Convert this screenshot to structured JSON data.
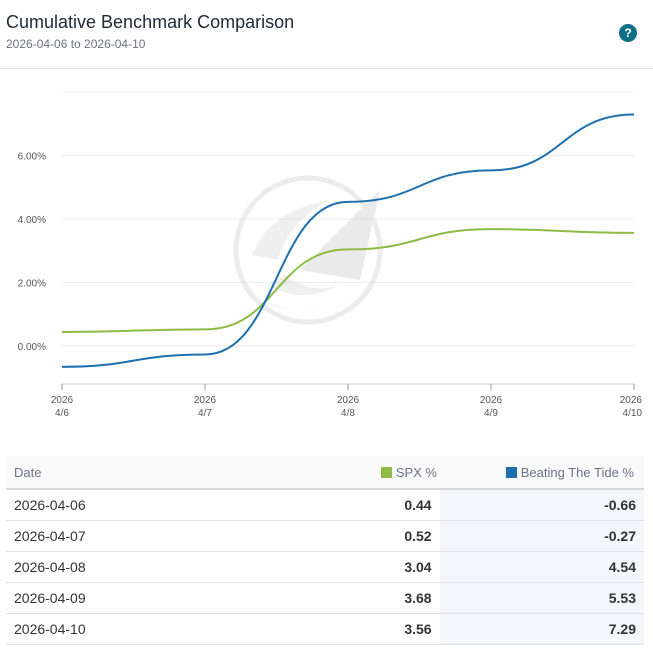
{
  "header": {
    "title": "Cumulative Benchmark Comparison",
    "subtitle": "2026-04-06 to 2026-04-10",
    "help_label": "?"
  },
  "colors": {
    "spx": "#8cbc45",
    "btt": "#1d70b0",
    "grid": "#ececec",
    "accent": "#0e6f86"
  },
  "icons": {
    "watermark": "sailboat-logo-watermark",
    "help": "question-icon"
  },
  "chart_data": {
    "type": "line",
    "title": "Cumulative Benchmark Comparison",
    "subtitle": "2026-04-06 to 2026-04-10",
    "x": [
      "2026-04-06",
      "2026-04-07",
      "2026-04-08",
      "2026-04-09",
      "2026-04-10"
    ],
    "x_tick_labels": [
      {
        "year": "2026",
        "day": "4/6"
      },
      {
        "year": "2026",
        "day": "4/7"
      },
      {
        "year": "2026",
        "day": "4/8"
      },
      {
        "year": "2026",
        "day": "4/9"
      },
      {
        "year": "2026",
        "day": "4/10"
      }
    ],
    "series": [
      {
        "name": "SPX %",
        "color": "#8cbc45",
        "values": [
          0.44,
          0.52,
          3.04,
          3.68,
          3.56
        ]
      },
      {
        "name": "Beating The Tide %",
        "color": "#1d70b0",
        "values": [
          -0.66,
          -0.27,
          4.54,
          5.53,
          7.29
        ]
      }
    ],
    "y_ticks": [
      "0.00%",
      "2.00%",
      "4.00%",
      "6.00%"
    ],
    "y_tick_values": [
      0,
      2,
      4,
      6
    ],
    "ylim": [
      -1.2,
      8
    ],
    "grid": true,
    "legend": "table-header",
    "xlabel": "",
    "ylabel": ""
  },
  "table": {
    "headers": {
      "date": "Date",
      "spx": "SPX %",
      "btt": "Beating The Tide %"
    },
    "rows": [
      {
        "date": "2026-04-06",
        "spx": "0.44",
        "btt": "-0.66"
      },
      {
        "date": "2026-04-07",
        "spx": "0.52",
        "btt": "-0.27"
      },
      {
        "date": "2026-04-08",
        "spx": "3.04",
        "btt": "4.54"
      },
      {
        "date": "2026-04-09",
        "spx": "3.68",
        "btt": "5.53"
      },
      {
        "date": "2026-04-10",
        "spx": "3.56",
        "btt": "7.29"
      }
    ]
  }
}
